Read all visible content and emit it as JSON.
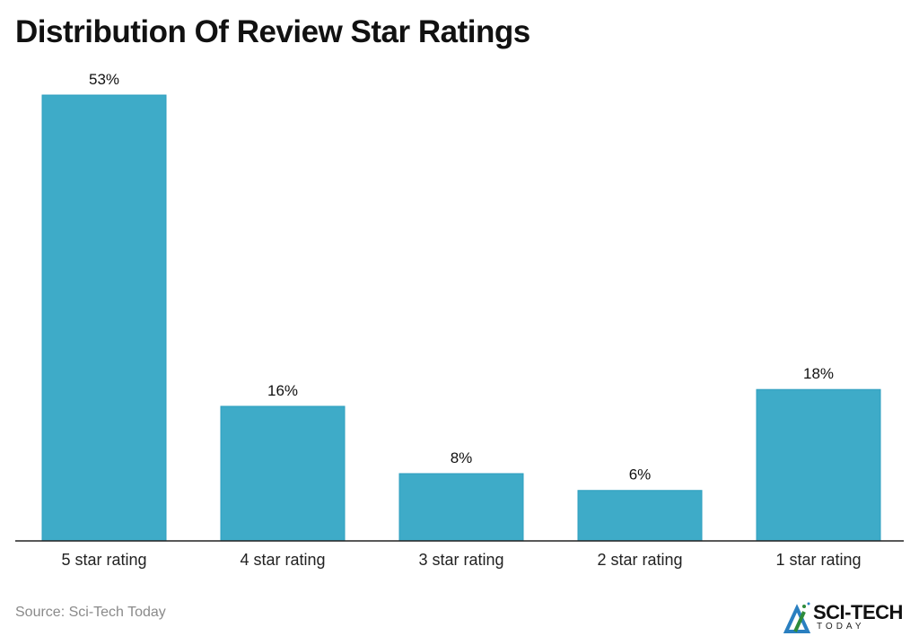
{
  "chart_data": {
    "type": "bar",
    "title": "Distribution Of Review Star Ratings",
    "categories": [
      "5 star rating",
      "4 star rating",
      "3 star rating",
      "2 star rating",
      "1 star rating"
    ],
    "values": [
      53,
      16,
      8,
      6,
      18
    ],
    "data_labels": [
      "53%",
      "16%",
      "8%",
      "6%",
      "18%"
    ],
    "unit": "%",
    "ylim": [
      0,
      53
    ],
    "grid": false,
    "bar_color": "#3EABC8"
  },
  "footer": {
    "source": "Source: Sci-Tech Today",
    "logo_text": "SCI-TECH",
    "logo_subtext": "TODAY"
  }
}
